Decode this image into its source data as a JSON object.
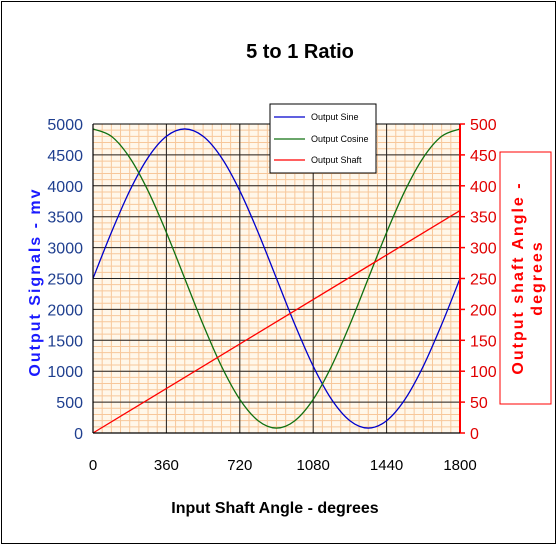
{
  "chart_data": {
    "type": "line",
    "title": "5 to 1 Ratio",
    "xlabel": "Input Shaft Angle - degrees",
    "ylabel_left": "Output Signals - mv",
    "ylabel_right_line1": "Output shaft Angle -",
    "ylabel_right_line2": "degrees",
    "xlim": [
      0,
      1800
    ],
    "ylim_left": [
      0,
      5000
    ],
    "ylim_right": [
      0,
      500
    ],
    "x_ticks": [
      "0",
      "360",
      "720",
      "1080",
      "1440",
      "1800"
    ],
    "y_left_ticks": [
      "0",
      "500",
      "1000",
      "1500",
      "2000",
      "2500",
      "3000",
      "3500",
      "4000",
      "4500",
      "5000"
    ],
    "y_right_ticks": [
      "0",
      "50",
      "100",
      "150",
      "200",
      "250",
      "300",
      "350",
      "400",
      "450",
      "500"
    ],
    "grid": true,
    "legend_position": "top-center",
    "colors": {
      "sine": "#0000cc",
      "cosine": "#107010",
      "shaft": "#ff0000",
      "grid_minor": "#f7c79a",
      "grid_major": "#222222"
    },
    "series": [
      {
        "name": "Output Sine",
        "axis": "left",
        "x": [
          0,
          90,
          180,
          270,
          360,
          450,
          540,
          630,
          720,
          810,
          900,
          990,
          1080,
          1170,
          1260,
          1350,
          1440,
          1530,
          1620,
          1710,
          1800
        ],
        "values": [
          2500,
          3245,
          3919,
          4456,
          4801,
          4920,
          4801,
          4456,
          3919,
          3245,
          2500,
          1755,
          1081,
          544,
          199,
          80,
          199,
          544,
          1081,
          1755,
          2500
        ]
      },
      {
        "name": "Output Cosine",
        "axis": "left",
        "x": [
          0,
          90,
          180,
          270,
          360,
          450,
          540,
          630,
          720,
          810,
          900,
          990,
          1080,
          1170,
          1260,
          1350,
          1440,
          1530,
          1620,
          1710,
          1800
        ],
        "values": [
          4920,
          4801,
          4456,
          3919,
          3245,
          2500,
          1755,
          1081,
          544,
          199,
          80,
          199,
          544,
          1081,
          1755,
          2500,
          3245,
          3919,
          4456,
          4801,
          4920
        ]
      },
      {
        "name": "Output Shaft",
        "axis": "right",
        "x": [
          0,
          1800
        ],
        "values": [
          0,
          360
        ]
      }
    ]
  }
}
